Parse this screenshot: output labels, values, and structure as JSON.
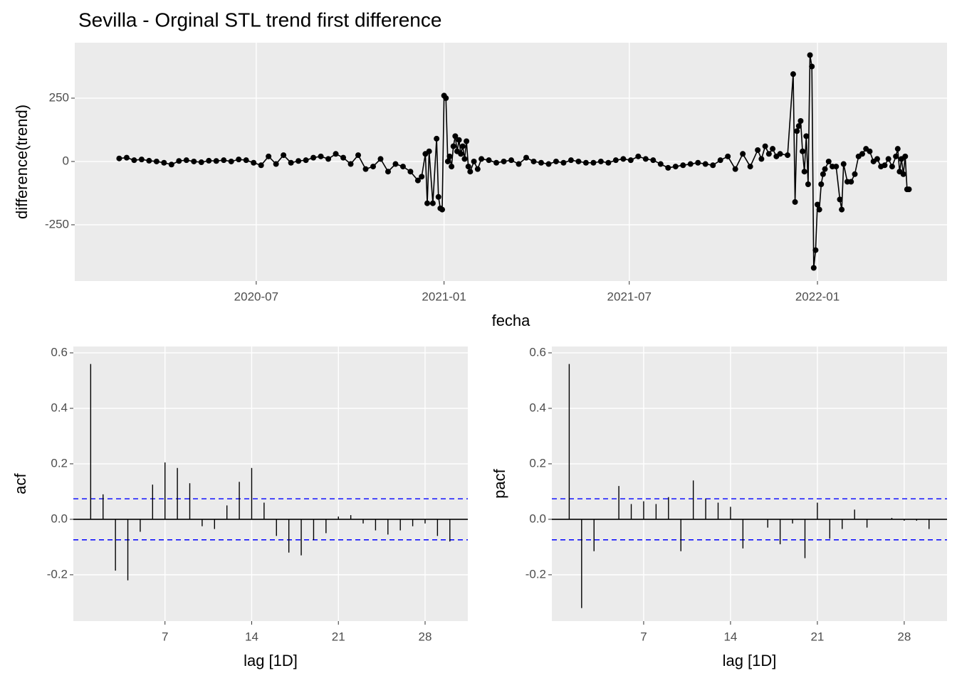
{
  "chart_data": [
    {
      "type": "line",
      "title": "Sevilla - Orginal STL trend first difference",
      "x_label": "fecha",
      "y_label": "difference(trend)",
      "color": "#000000",
      "background": "#ebebeb",
      "grid": true,
      "xlim": [
        2020.011,
        2022.347
      ],
      "ylim": [
        -472,
        469
      ],
      "xticks": [
        {
          "value": 2020.497,
          "label": "2020-07"
        },
        {
          "value": 2021.0,
          "label": "2021-01"
        },
        {
          "value": 2021.496,
          "label": "2021-07"
        },
        {
          "value": 2022.0,
          "label": "2022-01"
        }
      ],
      "yticks": [
        -250,
        0,
        250
      ],
      "x": [
        2020.13,
        2020.15,
        2020.17,
        2020.19,
        2020.21,
        2020.23,
        2020.25,
        2020.27,
        2020.29,
        2020.31,
        2020.33,
        2020.35,
        2020.37,
        2020.39,
        2020.41,
        2020.43,
        2020.45,
        2020.47,
        2020.49,
        2020.51,
        2020.53,
        2020.55,
        2020.57,
        2020.59,
        2020.61,
        2020.63,
        2020.65,
        2020.67,
        2020.69,
        2020.71,
        2020.73,
        2020.75,
        2020.77,
        2020.79,
        2020.81,
        2020.83,
        2020.85,
        2020.87,
        2020.89,
        2020.91,
        2020.93,
        2020.94,
        2020.95,
        2020.955,
        2020.96,
        2020.97,
        2020.98,
        2020.985,
        2020.99,
        2020.995,
        2021.0,
        2021.005,
        2021.01,
        2021.015,
        2021.02,
        2021.025,
        2021.03,
        2021.035,
        2021.04,
        2021.045,
        2021.05,
        2021.055,
        2021.06,
        2021.065,
        2021.07,
        2021.08,
        2021.09,
        2021.1,
        2021.12,
        2021.14,
        2021.16,
        2021.18,
        2021.2,
        2021.22,
        2021.24,
        2021.26,
        2021.28,
        2021.3,
        2021.32,
        2021.34,
        2021.36,
        2021.38,
        2021.4,
        2021.42,
        2021.44,
        2021.46,
        2021.48,
        2021.5,
        2021.52,
        2021.54,
        2021.56,
        2021.58,
        2021.6,
        2021.62,
        2021.64,
        2021.66,
        2021.68,
        2021.7,
        2021.72,
        2021.74,
        2021.76,
        2021.78,
        2021.8,
        2021.82,
        2021.84,
        2021.85,
        2021.86,
        2021.87,
        2021.88,
        2021.89,
        2021.9,
        2021.92,
        2021.935,
        2021.94,
        2021.945,
        2021.95,
        2021.955,
        2021.96,
        2021.965,
        2021.97,
        2021.975,
        2021.98,
        2021.985,
        2021.99,
        2021.995,
        2022.0,
        2022.005,
        2022.01,
        2022.015,
        2022.02,
        2022.03,
        2022.04,
        2022.05,
        2022.06,
        2022.065,
        2022.07,
        2022.08,
        2022.09,
        2022.1,
        2022.11,
        2022.12,
        2022.13,
        2022.14,
        2022.15,
        2022.16,
        2022.17,
        2022.18,
        2022.19,
        2022.2,
        2022.21,
        2022.215,
        2022.22,
        2022.225,
        2022.23,
        2022.235,
        2022.24,
        2022.245
      ],
      "values": [
        12,
        15,
        5,
        8,
        3,
        0,
        -5,
        -12,
        2,
        5,
        0,
        -3,
        3,
        2,
        5,
        0,
        8,
        5,
        -5,
        -15,
        20,
        -10,
        25,
        -5,
        2,
        5,
        15,
        20,
        10,
        30,
        15,
        -10,
        25,
        -30,
        -20,
        10,
        -40,
        -10,
        -20,
        -40,
        -75,
        -60,
        30,
        -165,
        40,
        -165,
        90,
        -140,
        -185,
        -190,
        260,
        250,
        0,
        20,
        -20,
        60,
        100,
        40,
        85,
        30,
        60,
        10,
        80,
        -20,
        -40,
        0,
        -30,
        10,
        5,
        -5,
        0,
        5,
        -10,
        15,
        0,
        -5,
        -10,
        0,
        -5,
        5,
        0,
        -5,
        -5,
        0,
        -5,
        5,
        10,
        5,
        20,
        10,
        5,
        -10,
        -25,
        -20,
        -15,
        -10,
        -5,
        -10,
        -15,
        5,
        20,
        -30,
        30,
        -20,
        45,
        10,
        60,
        30,
        50,
        20,
        30,
        25,
        345,
        -160,
        120,
        140,
        160,
        40,
        -40,
        100,
        -90,
        420,
        375,
        -420,
        -350,
        -170,
        -190,
        -90,
        -50,
        -30,
        0,
        -20,
        -20,
        -150,
        -190,
        -10,
        -80,
        -80,
        -50,
        20,
        30,
        50,
        40,
        0,
        10,
        -20,
        -15,
        10,
        -20,
        20,
        50,
        -40,
        10,
        -50,
        20,
        -110,
        -110
      ]
    },
    {
      "type": "acf",
      "x_label": "lag [1D]",
      "y_label": "acf",
      "color": "#000000",
      "ci_color": "#0000ff",
      "background": "#ebebeb",
      "grid": true,
      "ci": 0.074,
      "xlim": [
        -0.4,
        31.45
      ],
      "ylim": [
        -0.367,
        0.623
      ],
      "xticks": [
        7,
        14,
        21,
        28
      ],
      "yticks": [
        -0.2,
        {
          "value": 0,
          "label": "0.0"
        },
        0.2,
        0.4,
        0.6
      ],
      "x": [
        1,
        2,
        3,
        4,
        5,
        6,
        7,
        8,
        9,
        10,
        11,
        12,
        13,
        14,
        15,
        16,
        17,
        18,
        19,
        20,
        21,
        22,
        23,
        24,
        25,
        26,
        27,
        28,
        29,
        30
      ],
      "values": [
        0.56,
        0.09,
        -0.185,
        -0.22,
        -0.045,
        0.125,
        0.205,
        0.185,
        0.13,
        -0.025,
        -0.035,
        0.05,
        0.135,
        0.185,
        0.06,
        -0.06,
        -0.12,
        -0.13,
        -0.075,
        -0.05,
        0.01,
        0.015,
        -0.015,
        -0.04,
        -0.055,
        -0.04,
        -0.025,
        -0.015,
        -0.06,
        -0.08
      ]
    },
    {
      "type": "acf",
      "x_label": "lag [1D]",
      "y_label": "pacf",
      "color": "#000000",
      "ci_color": "#0000ff",
      "background": "#ebebeb",
      "grid": true,
      "ci": 0.074,
      "xlim": [
        -0.4,
        31.45
      ],
      "ylim": [
        -0.367,
        0.623
      ],
      "xticks": [
        7,
        14,
        21,
        28
      ],
      "yticks": [
        -0.2,
        {
          "value": 0,
          "label": "0.0"
        },
        0.2,
        0.4,
        0.6
      ],
      "x": [
        1,
        2,
        3,
        4,
        5,
        6,
        7,
        8,
        9,
        10,
        11,
        12,
        13,
        14,
        15,
        16,
        17,
        18,
        19,
        20,
        21,
        22,
        23,
        24,
        25,
        26,
        27,
        28,
        29,
        30
      ],
      "values": [
        0.56,
        -0.32,
        -0.115,
        0,
        0.12,
        0.055,
        0.065,
        0.055,
        0.08,
        -0.115,
        0.14,
        0.075,
        0.06,
        0.045,
        -0.105,
        0,
        -0.03,
        -0.09,
        -0.015,
        -0.14,
        0.06,
        -0.07,
        -0.035,
        0.035,
        -0.03,
        0,
        0.005,
        -0.005,
        -0.005,
        -0.035
      ]
    }
  ]
}
